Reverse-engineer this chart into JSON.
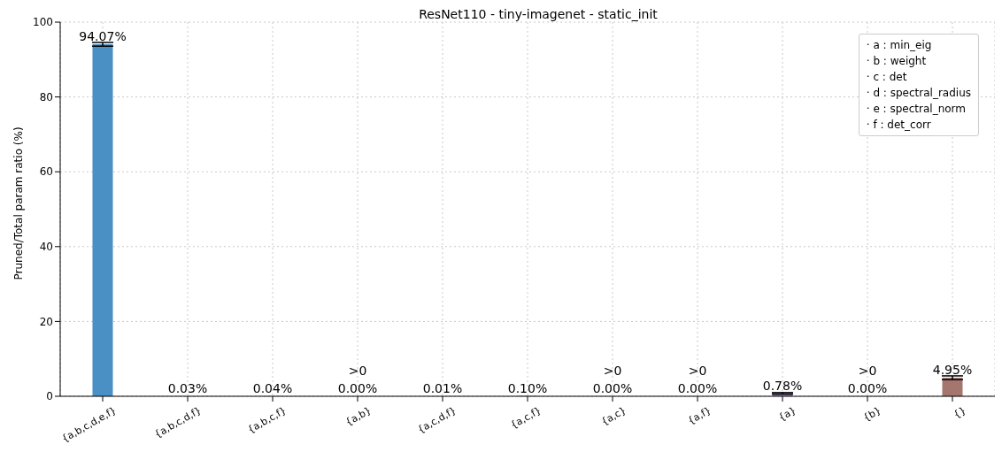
{
  "chart_data": {
    "type": "bar",
    "title": "ResNet110 - tiny-imagenet - static_init",
    "ylabel": "Pruned/Total param ratio (%)",
    "categories": [
      "{a,b,c,d,e,f}",
      "{a,b,c,d,f}",
      "{a,b,c,f}",
      "{a,b}",
      "{a,c,d,f}",
      "{a,c,f}",
      "{a,c}",
      "{a,f}",
      "{a}",
      "{b}",
      "{}"
    ],
    "values": [
      94.07,
      0.03,
      0.04,
      0.0,
      0.01,
      0.1,
      0.0,
      0.0,
      0.78,
      0.0,
      4.95
    ],
    "colors": [
      "#4a90c4",
      "#ff983e",
      "#48b048",
      "#da4d4e",
      "#a986c9",
      "#a4766e",
      "#e993cf",
      "#8f8f8f",
      "#a986c9",
      "#33c3d1",
      "#a4766e"
    ],
    "errors": [
      0.5,
      null,
      null,
      null,
      null,
      null,
      null,
      null,
      0.2,
      null,
      0.5
    ],
    "value_labels": [
      "94.07%",
      "0.03%",
      "0.04%",
      "0.00%",
      "0.01%",
      "0.10%",
      "0.00%",
      "0.00%",
      "0.78%",
      "0.00%",
      "4.95%"
    ],
    "annotations": [
      {
        "text": ">0",
        "x": "{a,b}",
        "y": 0
      },
      {
        "text": ">0",
        "x": "{a,c}",
        "y": 0
      },
      {
        "text": ">0",
        "x": "{a,f}",
        "y": 0
      },
      {
        "text": ">0",
        "x": "{b}",
        "y": 0
      },
      "· a : min_eig",
      "· b : weight",
      "· c : det",
      "· d : spectral_radius",
      "· e : spectral_norm",
      "· f : det_corr"
    ],
    "ylim": [
      0,
      100
    ],
    "yticks": [
      0,
      20,
      40,
      60,
      80,
      100
    ],
    "grid": true
  }
}
